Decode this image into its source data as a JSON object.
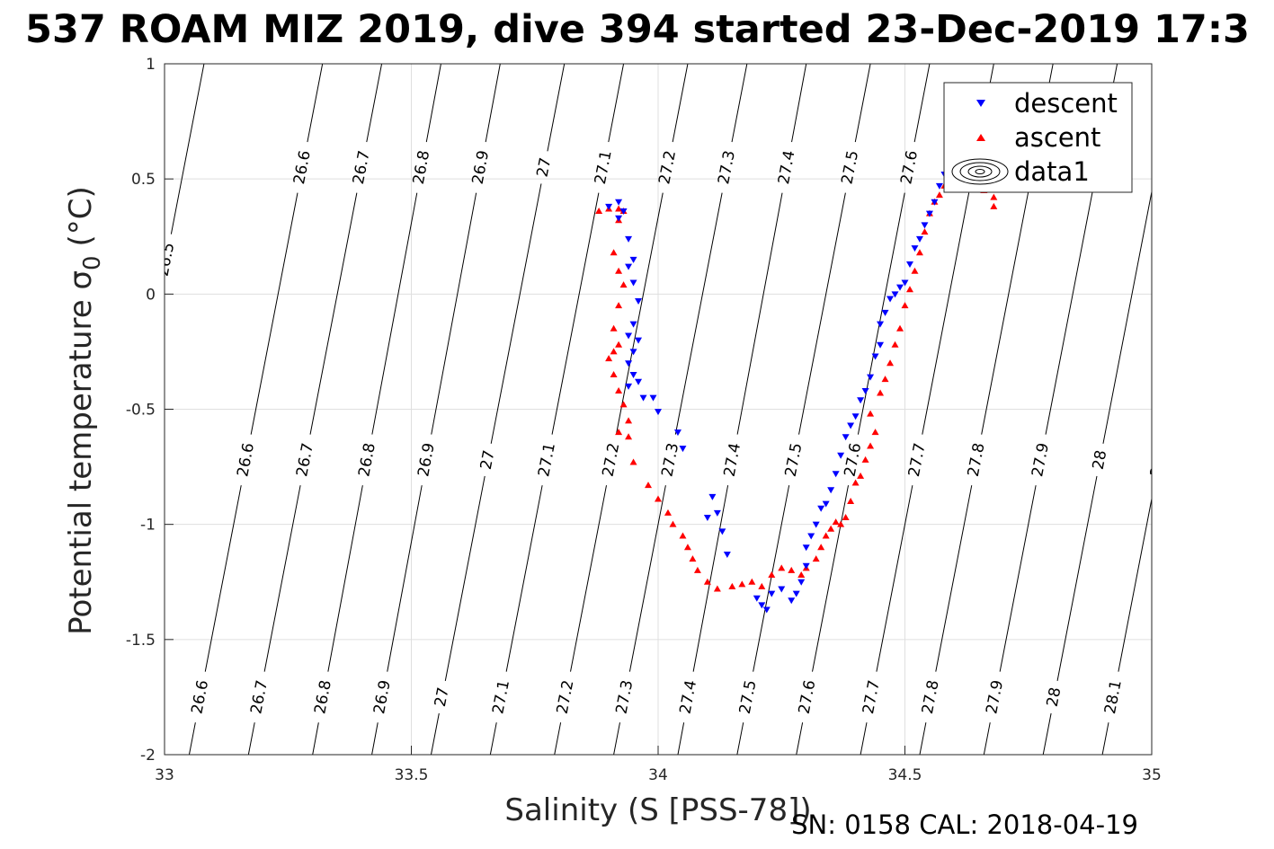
{
  "page": {
    "title": "537 ROAM MIZ 2019, dive 394 started 23-Dec-2019 17:3",
    "footer": "SN: 0158  CAL: 2018-04-19"
  },
  "chart_data": {
    "type": "scatter",
    "title": "537 ROAM MIZ 2019, dive 394 started 23-Dec-2019 17:3",
    "xlabel": "Salinity (S [PSS-78])",
    "ylabel_main": "Potential temperature σ",
    "ylabel_sub": "0",
    "ylabel_unit": "(°C)",
    "xlim": [
      33,
      35
    ],
    "ylim": [
      -2,
      1
    ],
    "xticks": [
      33,
      33.5,
      34,
      34.5,
      35
    ],
    "xtick_labels": [
      "33",
      "33.5",
      "34",
      "34.5",
      "35"
    ],
    "yticks": [
      -2,
      -1.5,
      -1,
      -0.5,
      0,
      0.5,
      1
    ],
    "ytick_labels": [
      "-2",
      "-1.5",
      "-1",
      "-0.5",
      "0",
      "0.5",
      "1"
    ],
    "grid": true,
    "legend_placement": "top-right",
    "legend": [
      "descent",
      "ascent",
      "data1"
    ],
    "colors": {
      "descent": "#0000ff",
      "ascent": "#ff0000",
      "contour": "#000000"
    },
    "isopycnals": [
      {
        "value": 26.5,
        "bottom_s": 32.81,
        "top_s": 33.08,
        "labels": [
          {
            "text": "26.5",
            "t": 0.15
          }
        ]
      },
      {
        "value": 26.6,
        "bottom_s": 33.05,
        "top_s": 33.32,
        "labels": [
          {
            "text": "26.6",
            "t": 0.55
          },
          {
            "text": "26.6",
            "t": -0.72
          },
          {
            "text": "26.6",
            "t": -1.75
          }
        ]
      },
      {
        "value": 26.7,
        "bottom_s": 33.17,
        "top_s": 33.44,
        "labels": [
          {
            "text": "26.7",
            "t": 0.55
          },
          {
            "text": "26.7",
            "t": -0.72
          },
          {
            "text": "26.7",
            "t": -1.75
          }
        ]
      },
      {
        "value": 26.8,
        "bottom_s": 33.3,
        "top_s": 33.56,
        "labels": [
          {
            "text": "26.8",
            "t": 0.55
          },
          {
            "text": "26.8",
            "t": -0.72
          },
          {
            "text": "26.8",
            "t": -1.75
          }
        ]
      },
      {
        "value": 26.9,
        "bottom_s": 33.42,
        "top_s": 33.68,
        "labels": [
          {
            "text": "26.9",
            "t": 0.55
          },
          {
            "text": "26.9",
            "t": -0.72
          },
          {
            "text": "26.9",
            "t": -1.75
          }
        ]
      },
      {
        "value": 27,
        "bottom_s": 33.54,
        "top_s": 33.81,
        "labels": [
          {
            "text": "27",
            "t": 0.55
          },
          {
            "text": "27",
            "t": -0.72
          },
          {
            "text": "27",
            "t": -1.75
          }
        ]
      },
      {
        "value": 27.1,
        "bottom_s": 33.66,
        "top_s": 33.93,
        "labels": [
          {
            "text": "27.1",
            "t": 0.55
          },
          {
            "text": "27.1",
            "t": -0.72
          },
          {
            "text": "27.1",
            "t": -1.75
          }
        ]
      },
      {
        "value": 27.2,
        "bottom_s": 33.79,
        "top_s": 34.06,
        "labels": [
          {
            "text": "27.2",
            "t": 0.55
          },
          {
            "text": "27.2",
            "t": -0.72
          },
          {
            "text": "27.2",
            "t": -1.75
          }
        ]
      },
      {
        "value": 27.3,
        "bottom_s": 33.91,
        "top_s": 34.18,
        "labels": [
          {
            "text": "27.3",
            "t": 0.55
          },
          {
            "text": "27.3",
            "t": -0.72
          },
          {
            "text": "27.3",
            "t": -1.75
          }
        ]
      },
      {
        "value": 27.4,
        "bottom_s": 34.04,
        "top_s": 34.3,
        "labels": [
          {
            "text": "27.4",
            "t": 0.55
          },
          {
            "text": "27.4",
            "t": -0.72
          },
          {
            "text": "27.4",
            "t": -1.75
          }
        ]
      },
      {
        "value": 27.5,
        "bottom_s": 34.16,
        "top_s": 34.43,
        "labels": [
          {
            "text": "27.5",
            "t": 0.55
          },
          {
            "text": "27.5",
            "t": -0.72
          },
          {
            "text": "27.5",
            "t": -1.75
          }
        ]
      },
      {
        "value": 27.6,
        "bottom_s": 34.28,
        "top_s": 34.55,
        "labels": [
          {
            "text": "27.6",
            "t": 0.55
          },
          {
            "text": "27.6",
            "t": -0.72
          },
          {
            "text": "27.6",
            "t": -1.75
          }
        ]
      },
      {
        "value": 27.7,
        "bottom_s": 34.41,
        "top_s": 34.68,
        "labels": [
          {
            "text": "27.7",
            "t": 0.55
          },
          {
            "text": "27.7",
            "t": -0.72
          },
          {
            "text": "27.7",
            "t": -1.75
          }
        ]
      },
      {
        "value": 27.8,
        "bottom_s": 34.53,
        "top_s": 34.8,
        "labels": [
          {
            "text": "27.8",
            "t": -0.72
          },
          {
            "text": "27.8",
            "t": -1.75
          }
        ]
      },
      {
        "value": 27.9,
        "bottom_s": 34.66,
        "top_s": 34.93,
        "labels": [
          {
            "text": "27.9",
            "t": -0.72
          },
          {
            "text": "27.9",
            "t": -1.75
          }
        ]
      },
      {
        "value": 28,
        "bottom_s": 34.78,
        "top_s": 35.05,
        "labels": [
          {
            "text": "28",
            "t": -0.72
          },
          {
            "text": "28",
            "t": -1.75
          }
        ]
      },
      {
        "value": 28.1,
        "bottom_s": 34.9,
        "top_s": 35.17,
        "labels": [
          {
            "text": "28.1",
            "t": -0.72
          },
          {
            "text": "28.1",
            "t": -1.75
          }
        ]
      }
    ],
    "series": [
      {
        "name": "descent",
        "marker": "triangle-down",
        "points": [
          [
            33.92,
            0.4
          ],
          [
            33.9,
            0.38
          ],
          [
            33.93,
            0.36
          ],
          [
            33.92,
            0.33
          ],
          [
            33.94,
            0.24
          ],
          [
            33.95,
            0.15
          ],
          [
            33.94,
            0.12
          ],
          [
            33.95,
            0.05
          ],
          [
            33.96,
            -0.03
          ],
          [
            33.95,
            -0.13
          ],
          [
            33.94,
            -0.18
          ],
          [
            33.96,
            -0.2
          ],
          [
            33.95,
            -0.25
          ],
          [
            33.94,
            -0.3
          ],
          [
            33.95,
            -0.35
          ],
          [
            33.94,
            -0.4
          ],
          [
            33.96,
            -0.38
          ],
          [
            33.97,
            -0.45
          ],
          [
            33.99,
            -0.45
          ],
          [
            34.0,
            -0.51
          ],
          [
            34.04,
            -0.6
          ],
          [
            34.05,
            -0.67
          ],
          [
            34.11,
            -0.88
          ],
          [
            34.12,
            -0.95
          ],
          [
            34.1,
            -0.97
          ],
          [
            34.13,
            -1.03
          ],
          [
            34.14,
            -1.13
          ],
          [
            34.2,
            -1.32
          ],
          [
            34.21,
            -1.35
          ],
          [
            34.22,
            -1.37
          ],
          [
            34.23,
            -1.3
          ],
          [
            34.25,
            -1.28
          ],
          [
            34.27,
            -1.33
          ],
          [
            34.28,
            -1.3
          ],
          [
            34.29,
            -1.25
          ],
          [
            34.3,
            -1.18
          ],
          [
            34.3,
            -1.1
          ],
          [
            34.31,
            -1.05
          ],
          [
            34.32,
            -1.0
          ],
          [
            34.33,
            -0.93
          ],
          [
            34.34,
            -0.91
          ],
          [
            34.35,
            -0.85
          ],
          [
            34.36,
            -0.78
          ],
          [
            34.37,
            -0.7
          ],
          [
            34.38,
            -0.62
          ],
          [
            34.39,
            -0.57
          ],
          [
            34.4,
            -0.53
          ],
          [
            34.41,
            -0.46
          ],
          [
            34.42,
            -0.42
          ],
          [
            34.43,
            -0.36
          ],
          [
            34.44,
            -0.27
          ],
          [
            34.45,
            -0.22
          ],
          [
            34.45,
            -0.13
          ],
          [
            34.46,
            -0.08
          ],
          [
            34.47,
            -0.02
          ],
          [
            34.48,
            0.0
          ],
          [
            34.49,
            0.03
          ],
          [
            34.5,
            0.05
          ],
          [
            34.51,
            0.13
          ],
          [
            34.52,
            0.2
          ],
          [
            34.53,
            0.24
          ],
          [
            34.54,
            0.3
          ],
          [
            34.55,
            0.35
          ],
          [
            34.56,
            0.4
          ],
          [
            34.57,
            0.47
          ],
          [
            34.58,
            0.52
          ],
          [
            34.59,
            0.57
          ],
          [
            34.6,
            0.6
          ]
        ]
      },
      {
        "name": "ascent",
        "marker": "triangle-up",
        "points": [
          [
            33.88,
            0.36
          ],
          [
            33.9,
            0.37
          ],
          [
            33.92,
            0.37
          ],
          [
            33.93,
            0.36
          ],
          [
            33.92,
            0.32
          ],
          [
            33.91,
            0.18
          ],
          [
            33.92,
            0.1
          ],
          [
            33.93,
            0.04
          ],
          [
            33.92,
            -0.05
          ],
          [
            33.91,
            -0.15
          ],
          [
            33.92,
            -0.22
          ],
          [
            33.91,
            -0.25
          ],
          [
            33.9,
            -0.28
          ],
          [
            33.91,
            -0.35
          ],
          [
            33.92,
            -0.42
          ],
          [
            33.93,
            -0.48
          ],
          [
            33.94,
            -0.55
          ],
          [
            33.92,
            -0.6
          ],
          [
            33.94,
            -0.62
          ],
          [
            33.95,
            -0.73
          ],
          [
            33.98,
            -0.83
          ],
          [
            34.0,
            -0.89
          ],
          [
            34.02,
            -0.95
          ],
          [
            34.03,
            -1.0
          ],
          [
            34.05,
            -1.05
          ],
          [
            34.06,
            -1.1
          ],
          [
            34.07,
            -1.15
          ],
          [
            34.08,
            -1.2
          ],
          [
            34.1,
            -1.25
          ],
          [
            34.12,
            -1.28
          ],
          [
            34.15,
            -1.27
          ],
          [
            34.17,
            -1.26
          ],
          [
            34.19,
            -1.25
          ],
          [
            34.21,
            -1.27
          ],
          [
            34.23,
            -1.22
          ],
          [
            34.25,
            -1.19
          ],
          [
            34.27,
            -1.2
          ],
          [
            34.29,
            -1.22
          ],
          [
            34.3,
            -1.19
          ],
          [
            34.32,
            -1.15
          ],
          [
            34.33,
            -1.1
          ],
          [
            34.34,
            -1.05
          ],
          [
            34.35,
            -1.02
          ],
          [
            34.36,
            -0.99
          ],
          [
            34.37,
            -1.0
          ],
          [
            34.38,
            -0.97
          ],
          [
            34.39,
            -0.9
          ],
          [
            34.4,
            -0.82
          ],
          [
            34.41,
            -0.79
          ],
          [
            34.42,
            -0.72
          ],
          [
            34.43,
            -0.66
          ],
          [
            34.44,
            -0.6
          ],
          [
            34.43,
            -0.52
          ],
          [
            34.45,
            -0.43
          ],
          [
            34.46,
            -0.37
          ],
          [
            34.47,
            -0.3
          ],
          [
            34.48,
            -0.22
          ],
          [
            34.49,
            -0.15
          ],
          [
            34.5,
            -0.05
          ],
          [
            34.51,
            0.02
          ],
          [
            34.52,
            0.1
          ],
          [
            34.53,
            0.18
          ],
          [
            34.54,
            0.27
          ],
          [
            34.55,
            0.35
          ],
          [
            34.56,
            0.4
          ],
          [
            34.57,
            0.43
          ],
          [
            34.58,
            0.47
          ],
          [
            34.6,
            0.5
          ],
          [
            34.63,
            0.5
          ],
          [
            34.66,
            0.45
          ],
          [
            34.68,
            0.42
          ],
          [
            34.68,
            0.38
          ]
        ]
      },
      {
        "name": "data1",
        "marker": "contour-ellipses",
        "points": []
      }
    ]
  }
}
